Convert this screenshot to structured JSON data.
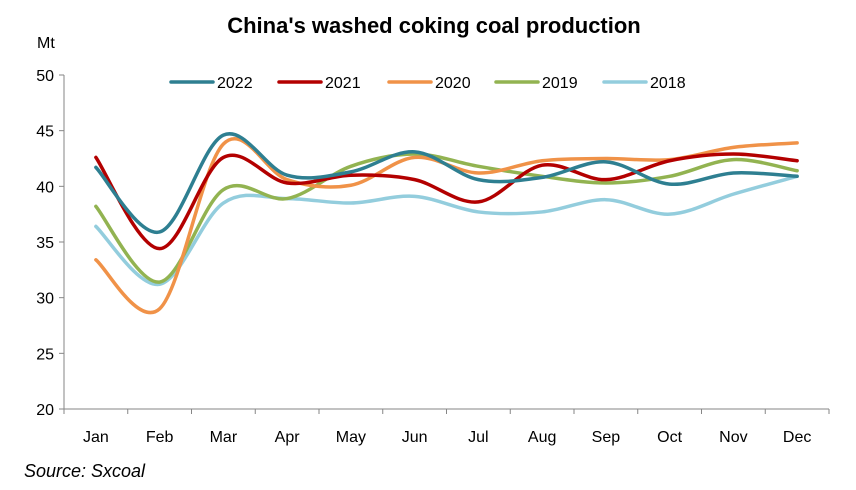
{
  "chart_data": {
    "type": "line",
    "title": "China's washed coking coal production",
    "ylabel": "Mt",
    "xlabel": "",
    "categories": [
      "Jan",
      "Feb",
      "Mar",
      "Apr",
      "May",
      "Jun",
      "Jul",
      "Aug",
      "Sep",
      "Oct",
      "Nov",
      "Dec"
    ],
    "ylim": [
      20,
      50
    ],
    "yticks": [
      "20",
      "25",
      "30",
      "35",
      "40",
      "45",
      "50"
    ],
    "grid": false,
    "legend_position": "top",
    "series": [
      {
        "name": "2022",
        "color": "#2e7f91",
        "values": [
          41.7,
          35.9,
          44.6,
          41.0,
          41.3,
          43.1,
          40.6,
          40.8,
          42.2,
          40.2,
          41.2,
          40.9
        ]
      },
      {
        "name": "2021",
        "color": "#b30000",
        "values": [
          42.6,
          34.4,
          42.6,
          40.3,
          41.0,
          40.6,
          38.6,
          41.9,
          40.6,
          42.3,
          42.9,
          42.3
        ]
      },
      {
        "name": "2020",
        "color": "#f09248",
        "values": [
          33.4,
          29.0,
          43.8,
          40.6,
          40.1,
          42.6,
          41.2,
          42.3,
          42.5,
          42.4,
          43.5,
          43.9
        ]
      },
      {
        "name": "2019",
        "color": "#92b351",
        "values": [
          38.2,
          31.4,
          39.7,
          38.9,
          41.8,
          42.9,
          41.8,
          40.9,
          40.3,
          40.9,
          42.4,
          41.4
        ]
      },
      {
        "name": "2018",
        "color": "#93cddd",
        "values": [
          36.4,
          31.2,
          38.5,
          38.9,
          38.5,
          39.1,
          37.7,
          37.7,
          38.8,
          37.5,
          39.3,
          40.9
        ]
      }
    ],
    "source_note": "Source: Sxcoal"
  }
}
